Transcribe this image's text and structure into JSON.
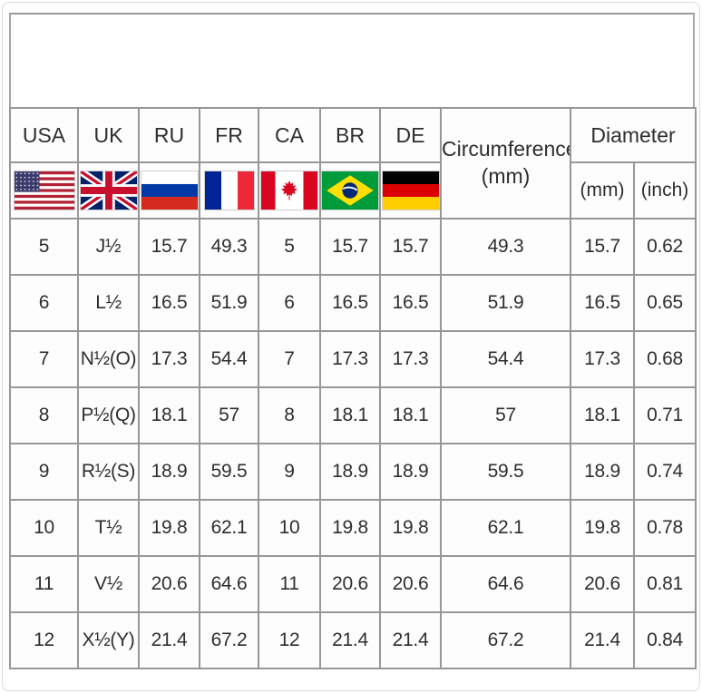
{
  "colors": {
    "table_border": "#979797",
    "frame_border": "#dcdcdc",
    "text": "#2e2e2e",
    "flag_red_us": "#B22234",
    "flag_blue_us": "#3C3B6E",
    "flag_blue_uk": "#012169",
    "flag_red_uk": "#C8102E",
    "flag_blue_ru": "#0039A6",
    "flag_red_ru": "#D52B1E",
    "flag_blue_fr": "#002395",
    "flag_red_fr": "#ED2939",
    "flag_red_ca": "#D80621",
    "flag_green_br": "#009B3A",
    "flag_yellow_br": "#FEDF00",
    "flag_blue_br": "#002776",
    "flag_black_de": "#000000",
    "flag_red_de": "#DD0000",
    "flag_gold_de": "#FFCE00"
  },
  "title_panel": {
    "text": ""
  },
  "chart_data": {
    "type": "table",
    "columns": [
      "USA",
      "UK",
      "RU",
      "FR",
      "CA",
      "BR",
      "DE",
      "Circumference (mm)",
      "Diameter (mm)",
      "Diameter (inch)"
    ],
    "header": {
      "country_codes": [
        "USA",
        "UK",
        "RU",
        "FR",
        "CA",
        "BR",
        "DE"
      ],
      "flag_icons": [
        "usa-flag",
        "uk-flag",
        "russia-flag",
        "france-flag",
        "canada-flag",
        "brazil-flag",
        "germany-flag"
      ],
      "circumference_label": "Circumference",
      "circumference_unit": "(mm)",
      "diameter_label": "Diameter",
      "diameter_unit_mm": "(mm)",
      "diameter_unit_inch": "(inch)"
    },
    "rows": [
      [
        "5",
        "J½",
        "15.7",
        "49.3",
        "5",
        "15.7",
        "15.7",
        "49.3",
        "15.7",
        "0.62"
      ],
      [
        "6",
        "L½",
        "16.5",
        "51.9",
        "6",
        "16.5",
        "16.5",
        "51.9",
        "16.5",
        "0.65"
      ],
      [
        "7",
        "N½(O)",
        "17.3",
        "54.4",
        "7",
        "17.3",
        "17.3",
        "54.4",
        "17.3",
        "0.68"
      ],
      [
        "8",
        "P½(Q)",
        "18.1",
        "57",
        "8",
        "18.1",
        "18.1",
        "57",
        "18.1",
        "0.71"
      ],
      [
        "9",
        "R½(S)",
        "18.9",
        "59.5",
        "9",
        "18.9",
        "18.9",
        "59.5",
        "18.9",
        "0.74"
      ],
      [
        "10",
        "T½",
        "19.8",
        "62.1",
        "10",
        "19.8",
        "19.8",
        "62.1",
        "19.8",
        "0.78"
      ],
      [
        "11",
        "V½",
        "20.6",
        "64.6",
        "11",
        "20.6",
        "20.6",
        "64.6",
        "20.6",
        "0.81"
      ],
      [
        "12",
        "X½(Y)",
        "21.4",
        "67.2",
        "12",
        "21.4",
        "21.4",
        "67.2",
        "21.4",
        "0.84"
      ]
    ]
  }
}
